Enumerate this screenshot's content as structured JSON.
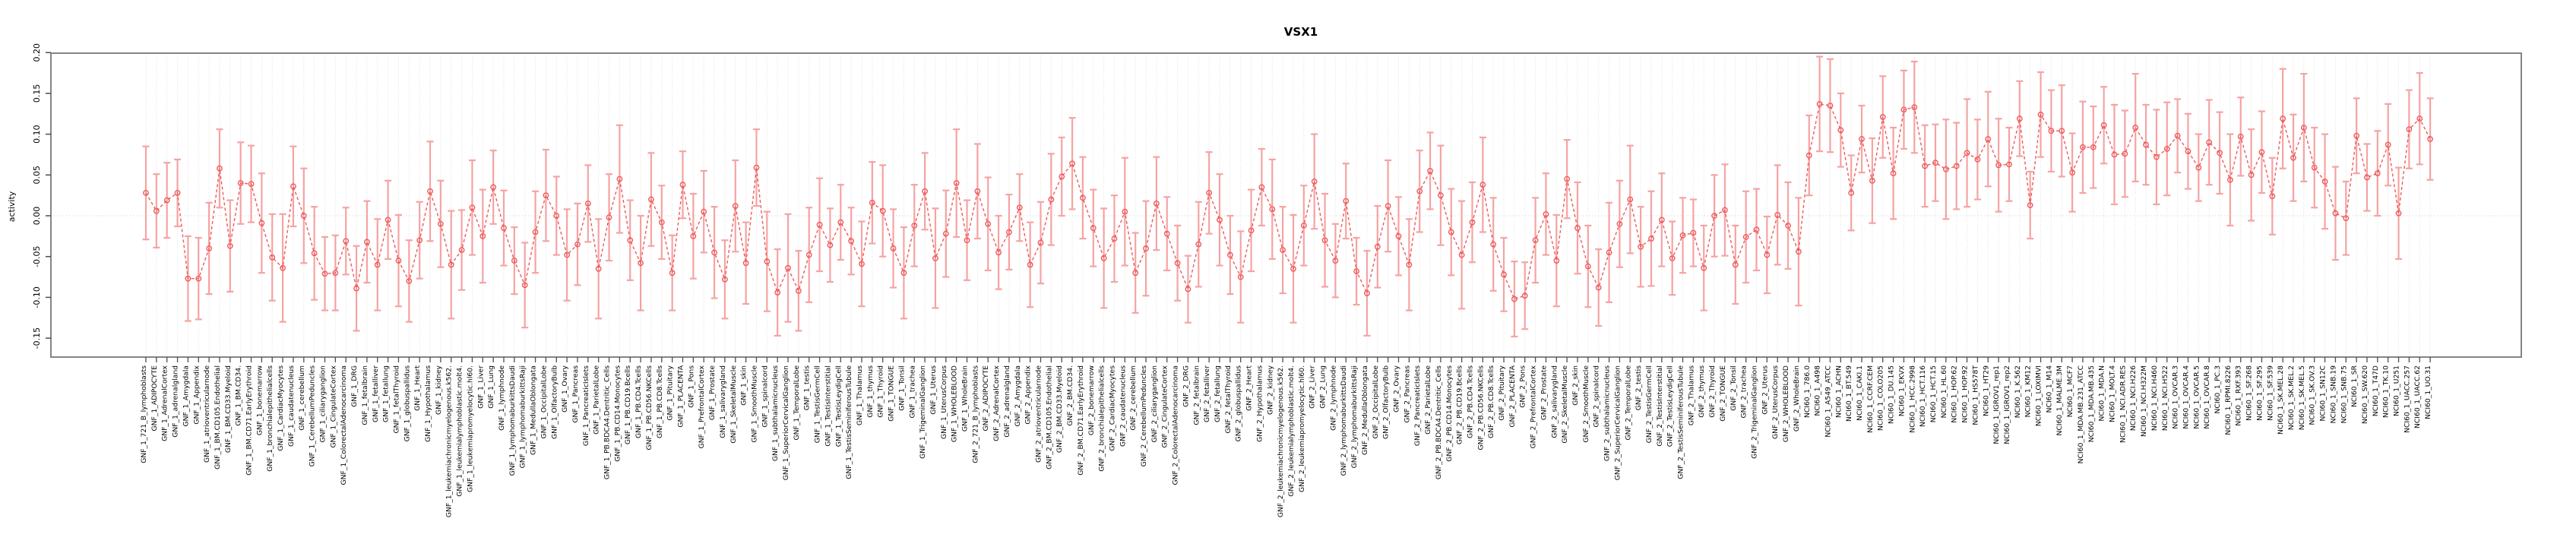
{
  "chart_data": {
    "type": "scatter",
    "title": "VSX1",
    "ylabel": "activity",
    "xlabel": "",
    "ylim": [
      -0.17,
      0.2
    ],
    "yticks": [
      "0.20",
      "0.15",
      "0.10",
      "0.05",
      "0.00",
      "-0.05",
      "-0.10",
      "-0.15"
    ],
    "ytick_values": [
      0.2,
      0.15,
      0.1,
      0.05,
      0.0,
      -0.05,
      -0.1,
      -0.15
    ],
    "grid": "dotted vertical line per category, dotted horizontal line at 0",
    "legend": "none",
    "point_color": "#ee5b5c",
    "errorbar_color": "#f5a3a3",
    "box_color": "#848484",
    "grid_color": "#e2e2e2",
    "categories": [
      "GNF_1_721_B_lymphoblasts",
      "GNF_1_ADIPOCYTE",
      "GNF_1_AdrenalCortex",
      "GNF_1_adrenalgland",
      "GNF_1_Amygdala",
      "GNF_1_Appendix",
      "GNF_1_atrioventricularnode",
      "GNF_1_BM.CD105.Endothelial",
      "GNF_1_BM.CD33.Myeloid",
      "GNF_1_BM.CD34.",
      "GNF_1_BM.CD71.EarlyErythroid",
      "GNF_1_bonemarrow",
      "GNF_1_bronchialepithelialcells",
      "GNF_1_CardiacMyocytes",
      "GNF_1_caudatenucleus",
      "GNF_1_cerebellum",
      "GNF_1_CerebellumPeduncles",
      "GNF_1_ciliaryganglion",
      "GNF_1_CingulateCortex",
      "GNF_1_ColorectalAdenocarcinoma",
      "GNF_1_DRG",
      "GNF_1_fetalbrain",
      "GNF_1_fetalliver",
      "GNF_1_fetallung",
      "GNF_1_fetalThyroid",
      "GNF_1_globuspallidus",
      "GNF_1_Heart",
      "GNF_1_Hypothalamus",
      "GNF_1_kidney",
      "GNF_1_leukemiachronicmyelogenous.k562.",
      "GNF_1_leukemialymphoblastic.molt4.",
      "GNF_1_leukemiapromyelocytic.hl60.",
      "GNF_1_Liver",
      "GNF_1_Lung",
      "GNF_1_lymphnode",
      "GNF_1_lymphomaburkittsDaudi",
      "GNF_1_lymphomaburkittsRaji",
      "GNF_1_MedullaOblongata",
      "GNF_1_OccipitalLobe",
      "GNF_1_OlfactoryBulb",
      "GNF_1_Ovary",
      "GNF_1_Pancreas",
      "GNF_1_PancreaticIslets",
      "GNF_1_ParietalLobe",
      "GNF_1_PB.BDCA4.Dentritic_Cells",
      "GNF_1_PB.CD14.Monocytes",
      "GNF_1_PB.CD19.Bcells",
      "GNF_1_PB.CD4.Tcells",
      "GNF_1_PB.CD56.NKCells",
      "GNF_1_PB.CD8.Tcells",
      "GNF_1_Pituitary",
      "GNF_1_PLACENTA",
      "GNF_1_Pons",
      "GNF_1_PrefrontalCortex",
      "GNF_1_Prostate",
      "GNF_1_salivarygland",
      "GNF_1_SkeletalMuscle",
      "GNF_1_skin",
      "GNF_1_SmoothMuscle",
      "GNF_1_spinalcord",
      "GNF_1_subthalamicnucleus",
      "GNF_1_SuperiorCervicalGanglion",
      "GNF_1_TemporalLobe",
      "GNF_1_testis",
      "GNF_1_TestisGermCell",
      "GNF_1_TestisInterstitial",
      "GNF_1_TestisLeydigCell",
      "GNF_1_TestisSeminiferousTubule",
      "GNF_1_Thalamus",
      "GNF_1_thymus",
      "GNF_1_Thyroid",
      "GNF_1_TONGUE",
      "GNF_1_Tonsil",
      "GNF_1_trachea",
      "GNF_1_TrigeminalGanglion",
      "GNF_1_Uterus",
      "GNF_1_UterusCorpus",
      "GNF_1_WHOLEBLOOD",
      "GNF_1_WholeBrain",
      "GNF_2_721_B_lymphoblasts",
      "GNF_2_ADIPOCYTE",
      "GNF_2_AdrenalCortex",
      "GNF_2_adrenalgland",
      "GNF_2_Amygdala",
      "GNF_2_Appendix",
      "GNF_2_atrioventricularnode",
      "GNF_2_BM.CD105.Endothelial",
      "GNF_2_BM.CD33.Myeloid",
      "GNF_2_BM.CD34.",
      "GNF_2_BM.CD71.EarlyErythroid",
      "GNF_2_bonemarrow",
      "GNF_2_bronchialepithelialcells",
      "GNF_2_CardiacMyocytes",
      "GNF_2_caudatenucleus",
      "GNF_2_cerebellum",
      "GNF_2_CerebellumPeduncles",
      "GNF_2_ciliaryganglion",
      "GNF_2_CingulateCortex",
      "GNF_2_ColorectalAdenocarcinoma",
      "GNF_2_DRG",
      "GNF_2_fetalbrain",
      "GNF_2_fetalliver",
      "GNF_2_fetallung",
      "GNF_2_fetalThyroid",
      "GNF_2_globuspallidus",
      "GNF_2_Heart",
      "GNF_2_Hypothalamus",
      "GNF_2_kidney",
      "GNF_2_leukemiachronicmyelogenous.k562.",
      "GNF_2_leukemialymphoblastic.molt4.",
      "GNF_2_leukemiapromyelocytic.hl60.",
      "GNF_2_Liver",
      "GNF_2_Lung",
      "GNF_2_lymphnode",
      "GNF_2_lymphomaburkittsDaudi",
      "GNF_2_lymphomaburkittsRaji",
      "GNF_2_MedullaOblongata",
      "GNF_2_OccipitalLobe",
      "GNF_2_OlfactoryBulb",
      "GNF_2_Ovary",
      "GNF_2_Pancreas",
      "GNF_2_PancreaticIslets",
      "GNF_2_ParietalLobe",
      "GNF_2_PB.BDCA4.Dentritic_Cells",
      "GNF_2_PB.CD14.Monocytes",
      "GNF_2_PB.CD19.Bcells",
      "GNF_2_PB.CD4.Tcells",
      "GNF_2_PB.CD56.NKCells",
      "GNF_2_PB.CD8.Tcells",
      "GNF_2_Pituitary",
      "GNF_2_PLACENTA",
      "GNF_2_Pons",
      "GNF_2_PrefrontalCortex",
      "GNF_2_Prostate",
      "GNF_2_salivarygland",
      "GNF_2_SkeletalMuscle",
      "GNF_2_skin",
      "GNF_2_SmoothMuscle",
      "GNF_2_spinalcord",
      "GNF_2_subthalamicnucleus",
      "GNF_2_SuperiorCervicalGanglion",
      "GNF_2_TemporalLobe",
      "GNF_2_testis",
      "GNF_2_TestisGermCell",
      "GNF_2_TestisInterstitial",
      "GNF_2_TestisLeydigCell",
      "GNF_2_TestisSeminiferousTubule",
      "GNF_2_Thalamus",
      "GNF_2_thymus",
      "GNF_2_Thyroid",
      "GNF_2_TONGUE",
      "GNF_2_Tonsil",
      "GNF_2_trachea",
      "GNF_2_TrigeminalGanglion",
      "GNF_2_Uterus",
      "GNF_2_UterusCorpus",
      "GNF_2_WHOLEBLOOD",
      "GNF_2_WholeBrain",
      "NCI60_1_786.0",
      "NCI60_1_A498",
      "NCI60_1_A549_ATCC",
      "NCI60_1_ACHN",
      "NCI60_1_BT.549",
      "NCI60_1_CAKI.1",
      "NCI60_1_CCRF.CEM",
      "NCI60_1_COLO205",
      "NCI60_1_DU.145",
      "NCI60_1_EKVX",
      "NCI60_1_HCC.2998",
      "NCI60_1_HCT.116",
      "NCI60_1_HCT.15",
      "NCI60_1_HL.60",
      "NCI60_1_HOP.62",
      "NCI60_1_HOP.92",
      "NCI60_1_HS578T",
      "NCI60_1_HT29",
      "NCI60_1_IGROV1_rep1",
      "NCI60_1_IGROV1_rep2",
      "NCI60_1_K.562",
      "NCI60_1_KM12",
      "NCI60_1_LOXIMVI",
      "NCI60_1_M14",
      "NCI60_1_MALME.3M",
      "NCI60_1_MCF7",
      "NCI60_1_MDA.MB.231_ATCC",
      "NCI60_1_MDA.MB.435",
      "NCI60_1_MDA.N",
      "NCI60_1_MOLT.4",
      "NCI60_1_NCI.ADR.RES",
      "NCI60_1_NCI.H226",
      "NCI60_1_NCI.H322M",
      "NCI60_1_NCI.H460",
      "NCI60_1_NCI.H522",
      "NCI60_1_OVCAR.3",
      "NCI60_1_OVCAR.4",
      "NCI60_1_OVCAR.5",
      "NCI60_1_OVCAR.8",
      "NCI60_1_PC.3",
      "NCI60_1_RPMI.8226",
      "NCI60_1_RXF.393",
      "NCI60_1_SF.268",
      "NCI60_1_SF.295",
      "NCI60_1_SF.539",
      "NCI60_1_SK.MEL.28",
      "NCI60_1_SK.MEL.2",
      "NCI60_1_SK.MEL.5",
      "NCI60_1_SK.OV.3",
      "NCI60_1_SN12C",
      "NCI60_1_SNB.19",
      "NCI60_1_SNB.75",
      "NCI60_1_SR",
      "NCI60_1_SW.620",
      "NCI60_1_T47D",
      "NCI60_1_TK.10",
      "NCI60_1_U251",
      "NCI60_1_UACC.257",
      "NCI60_1_UACC.62",
      "NCI60_1_UO.31"
    ],
    "values": [
      0.028,
      0.006,
      0.019,
      0.028,
      -0.077,
      -0.077,
      -0.04,
      0.058,
      -0.037,
      0.04,
      0.039,
      -0.009,
      -0.051,
      -0.064,
      0.036,
      0.0,
      -0.046,
      -0.071,
      -0.07,
      -0.031,
      -0.089,
      -0.032,
      -0.06,
      -0.005,
      -0.055,
      -0.08,
      -0.03,
      0.03,
      -0.01,
      -0.06,
      -0.042,
      0.01,
      -0.025,
      0.035,
      -0.015,
      -0.055,
      -0.085,
      -0.02,
      0.025,
      0.0,
      -0.048,
      -0.035,
      0.015,
      -0.065,
      -0.002,
      0.045,
      -0.03,
      -0.058,
      0.02,
      -0.008,
      -0.07,
      0.038,
      -0.025,
      0.005,
      -0.045,
      -0.078,
      0.012,
      -0.058,
      0.059,
      -0.056,
      -0.094,
      -0.064,
      -0.092,
      -0.048,
      -0.011,
      -0.036,
      -0.008,
      -0.031,
      -0.059,
      0.016,
      0.006,
      -0.04,
      -0.07,
      -0.012,
      0.03,
      -0.052,
      -0.022,
      0.04,
      -0.03,
      0.03,
      -0.01,
      -0.045,
      -0.02,
      0.01,
      -0.06,
      -0.033,
      0.02,
      0.048,
      0.064,
      0.022,
      -0.015,
      -0.052,
      -0.028,
      0.005,
      -0.07,
      -0.04,
      0.015,
      -0.022,
      -0.058,
      -0.09,
      -0.035,
      0.028,
      -0.005,
      -0.048,
      -0.075,
      -0.018,
      0.035,
      0.008,
      -0.042,
      -0.065,
      -0.012,
      0.042,
      -0.03,
      -0.055,
      0.018,
      -0.068,
      -0.095,
      -0.038,
      0.012,
      -0.025,
      -0.06,
      0.03,
      0.055,
      0.025,
      -0.02,
      -0.048,
      -0.008,
      0.038,
      -0.035,
      -0.072,
      -0.102,
      -0.098,
      -0.03,
      0.002,
      -0.055,
      0.045,
      -0.015,
      -0.062,
      -0.088,
      -0.045,
      -0.01,
      0.02,
      -0.038,
      -0.028,
      -0.005,
      -0.052,
      -0.024,
      -0.021,
      -0.064,
      0.0,
      0.007,
      -0.06,
      -0.026,
      -0.017,
      -0.048,
      0.001,
      -0.012,
      -0.044,
      0.074,
      0.137,
      0.135,
      0.105,
      0.028,
      0.094,
      0.043,
      0.121,
      0.052,
      0.13,
      0.133,
      0.061,
      0.065,
      0.057,
      0.061,
      0.077,
      0.069,
      0.094,
      0.062,
      0.063,
      0.119,
      0.013,
      0.124,
      0.104,
      0.104,
      0.053,
      0.084,
      0.084,
      0.111,
      0.075,
      0.076,
      0.108,
      0.087,
      0.072,
      0.082,
      0.098,
      0.079,
      0.059,
      0.09,
      0.077,
      0.044,
      0.097,
      0.05,
      0.078,
      0.024,
      0.119,
      0.071,
      0.108,
      0.059,
      0.042,
      0.003,
      -0.003,
      0.098,
      0.047,
      0.052,
      0.087,
      0.003,
      0.106,
      0.119,
      0.094
    ],
    "errors": [
      0.057,
      0.045,
      0.046,
      0.041,
      0.052,
      0.05,
      0.056,
      0.048,
      0.056,
      0.05,
      0.047,
      0.061,
      0.053,
      0.066,
      0.049,
      0.058,
      0.057,
      0.045,
      0.046,
      0.041,
      0.052,
      0.05,
      0.056,
      0.048,
      0.056,
      0.05,
      0.047,
      0.061,
      0.053,
      0.066,
      0.049,
      0.058,
      0.057,
      0.045,
      0.046,
      0.041,
      0.052,
      0.05,
      0.056,
      0.048,
      0.056,
      0.05,
      0.047,
      0.061,
      0.053,
      0.066,
      0.049,
      0.058,
      0.057,
      0.045,
      0.046,
      0.041,
      0.052,
      0.05,
      0.056,
      0.048,
      0.056,
      0.05,
      0.047,
      0.061,
      0.053,
      0.066,
      0.049,
      0.058,
      0.057,
      0.045,
      0.046,
      0.041,
      0.052,
      0.05,
      0.056,
      0.048,
      0.056,
      0.05,
      0.047,
      0.061,
      0.053,
      0.066,
      0.049,
      0.058,
      0.057,
      0.045,
      0.046,
      0.041,
      0.052,
      0.05,
      0.056,
      0.048,
      0.056,
      0.05,
      0.047,
      0.061,
      0.053,
      0.066,
      0.049,
      0.058,
      0.057,
      0.045,
      0.046,
      0.041,
      0.052,
      0.05,
      0.056,
      0.048,
      0.056,
      0.05,
      0.047,
      0.061,
      0.053,
      0.066,
      0.049,
      0.058,
      0.057,
      0.045,
      0.046,
      0.041,
      0.052,
      0.05,
      0.056,
      0.048,
      0.056,
      0.05,
      0.047,
      0.061,
      0.053,
      0.066,
      0.049,
      0.058,
      0.057,
      0.045,
      0.046,
      0.041,
      0.052,
      0.05,
      0.056,
      0.048,
      0.056,
      0.05,
      0.047,
      0.061,
      0.053,
      0.066,
      0.049,
      0.058,
      0.057,
      0.045,
      0.046,
      0.041,
      0.052,
      0.05,
      0.056,
      0.048,
      0.056,
      0.05,
      0.047,
      0.061,
      0.053,
      0.066,
      0.049,
      0.058,
      0.057,
      0.045,
      0.046,
      0.041,
      0.052,
      0.05,
      0.056,
      0.048,
      0.056,
      0.05,
      0.047,
      0.061,
      0.053,
      0.066,
      0.049,
      0.058,
      0.057,
      0.045,
      0.046,
      0.041,
      0.052,
      0.05,
      0.056,
      0.048,
      0.056,
      0.05,
      0.047,
      0.061,
      0.053,
      0.066,
      0.049,
      0.058,
      0.057,
      0.045,
      0.046,
      0.041,
      0.052,
      0.05,
      0.056,
      0.048,
      0.056,
      0.05,
      0.047,
      0.061,
      0.053,
      0.066,
      0.049,
      0.058,
      0.057,
      0.045,
      0.046,
      0.041,
      0.052,
      0.05,
      0.056,
      0.048,
      0.056,
      0.05
    ]
  }
}
